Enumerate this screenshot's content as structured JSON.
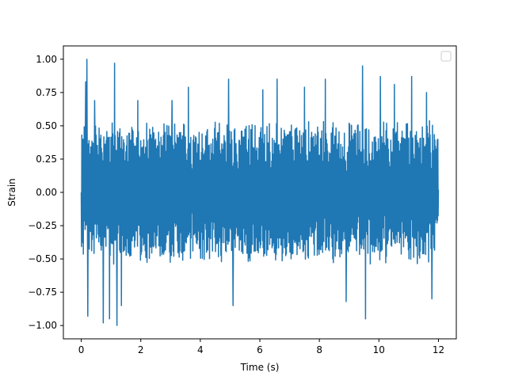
{
  "chart_data": {
    "type": "line",
    "title": "",
    "xlabel": "Time (s)",
    "ylabel": "Strain",
    "xlim": [
      -0.6,
      12.6
    ],
    "ylim": [
      -1.1,
      1.1
    ],
    "x_ticks": [
      0,
      2,
      4,
      6,
      8,
      10,
      12
    ],
    "x_tick_labels": [
      "0",
      "2",
      "4",
      "6",
      "8",
      "10",
      "12"
    ],
    "y_ticks": [
      -1.0,
      -0.75,
      -0.5,
      -0.25,
      0.0,
      0.25,
      0.5,
      0.75,
      1.0
    ],
    "y_tick_labels": [
      "−1.00",
      "−0.75",
      "−0.50",
      "−0.25",
      "0.00",
      "0.25",
      "0.50",
      "0.75",
      "1.00"
    ],
    "grid": false,
    "legend": {
      "placement": "top-right",
      "entries": []
    },
    "series": [
      {
        "color": "#1f77b4",
        "x_range": [
          0,
          12
        ],
        "samples": 1200,
        "typical_amplitude": 0.5,
        "peaks": [
          {
            "x": 0.19,
            "y": 1.0
          },
          {
            "x": 0.15,
            "y": 0.83
          },
          {
            "x": 0.22,
            "y": -0.93
          },
          {
            "x": 0.45,
            "y": 0.69
          },
          {
            "x": 0.74,
            "y": -0.98
          },
          {
            "x": 0.95,
            "y": -0.95
          },
          {
            "x": 1.12,
            "y": 0.97
          },
          {
            "x": 1.2,
            "y": -1.0
          },
          {
            "x": 1.35,
            "y": -0.85
          },
          {
            "x": 1.9,
            "y": 0.69
          },
          {
            "x": 3.05,
            "y": 0.69
          },
          {
            "x": 3.6,
            "y": 0.79
          },
          {
            "x": 4.95,
            "y": 0.85
          },
          {
            "x": 5.1,
            "y": -0.85
          },
          {
            "x": 6.1,
            "y": 0.77
          },
          {
            "x": 6.58,
            "y": 0.85
          },
          {
            "x": 7.5,
            "y": 0.79
          },
          {
            "x": 8.2,
            "y": 0.85
          },
          {
            "x": 8.9,
            "y": -0.82
          },
          {
            "x": 9.45,
            "y": 0.95
          },
          {
            "x": 9.55,
            "y": -0.95
          },
          {
            "x": 10.05,
            "y": 0.87
          },
          {
            "x": 10.52,
            "y": 0.81
          },
          {
            "x": 11.1,
            "y": 0.87
          },
          {
            "x": 11.6,
            "y": 0.75
          },
          {
            "x": 11.78,
            "y": -0.8
          }
        ],
        "start_value": 0.0,
        "end_value": 0.02
      }
    ]
  }
}
